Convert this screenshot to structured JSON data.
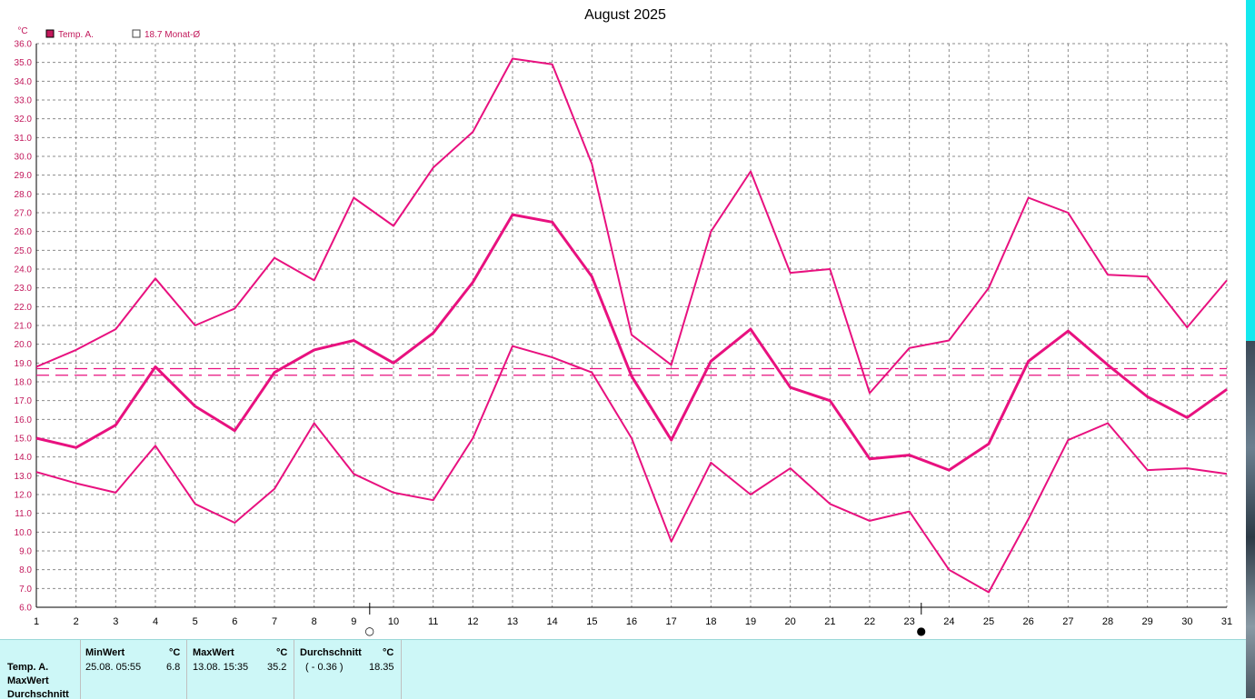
{
  "chart_data": {
    "type": "line",
    "title": "August 2025",
    "ylabel": "°C",
    "ylim": [
      6.0,
      36.0
    ],
    "ytick_step": 1.0,
    "x": [
      1,
      2,
      3,
      4,
      5,
      6,
      7,
      8,
      9,
      10,
      11,
      12,
      13,
      14,
      15,
      16,
      17,
      18,
      19,
      20,
      21,
      22,
      23,
      24,
      25,
      26,
      27,
      28,
      29,
      30,
      31
    ],
    "legend": [
      {
        "label": "Temp. A.",
        "marker": "filled-square"
      },
      {
        "label": "18.7 Monat-Ø",
        "marker": "open-square"
      }
    ],
    "series": [
      {
        "role": "max",
        "values": [
          18.8,
          19.7,
          20.8,
          23.5,
          21.0,
          21.9,
          24.6,
          23.4,
          27.8,
          26.3,
          29.4,
          31.3,
          35.2,
          34.9,
          29.6,
          20.5,
          18.9,
          26.0,
          29.2,
          23.8,
          24.0,
          17.4,
          19.8,
          20.2,
          23.0,
          27.8,
          27.0,
          23.7,
          23.6,
          20.9,
          23.4
        ]
      },
      {
        "role": "mean",
        "values": [
          15.0,
          14.5,
          15.7,
          18.8,
          16.7,
          15.4,
          18.5,
          19.7,
          20.2,
          19.0,
          20.6,
          23.3,
          26.9,
          26.5,
          23.6,
          18.3,
          14.9,
          19.1,
          20.8,
          17.7,
          17.0,
          13.9,
          14.1,
          13.3,
          14.7,
          19.1,
          20.7,
          18.9,
          17.2,
          16.1,
          17.6
        ]
      },
      {
        "role": "min",
        "values": [
          13.2,
          12.6,
          12.1,
          14.6,
          11.5,
          10.5,
          12.3,
          15.8,
          13.1,
          12.1,
          11.7,
          15.0,
          19.9,
          19.3,
          18.5,
          15.0,
          9.5,
          13.7,
          12.0,
          13.4,
          11.5,
          10.6,
          11.1,
          8.0,
          6.8,
          10.7,
          14.9,
          15.8,
          13.3,
          13.4,
          13.1
        ]
      }
    ],
    "reference_lines": [
      18.7,
      18.35
    ],
    "moon_phases": [
      {
        "day": 9.4,
        "symbol": "○"
      },
      {
        "day": 23.3,
        "symbol": "●"
      }
    ],
    "grid": true
  },
  "colors": {
    "series": "#e8117f",
    "grid": "#8c8c8c",
    "axis_text": "#c2185b",
    "panel_bg": "#cdf7f7"
  },
  "stats": {
    "row_labels": [
      "Temp. A.",
      "MaxWert",
      "Durchschnitt"
    ],
    "min": {
      "header": "MinWert",
      "unit": "°C",
      "date": "25.08.  05:55",
      "value": "6.8"
    },
    "max": {
      "header": "MaxWert",
      "unit": "°C",
      "date": "13.08.  15:35",
      "value": "35.2"
    },
    "avg": {
      "header": "Durchschnitt",
      "unit": "°C",
      "delta": "( - 0.36 )",
      "value": "18.35"
    }
  }
}
